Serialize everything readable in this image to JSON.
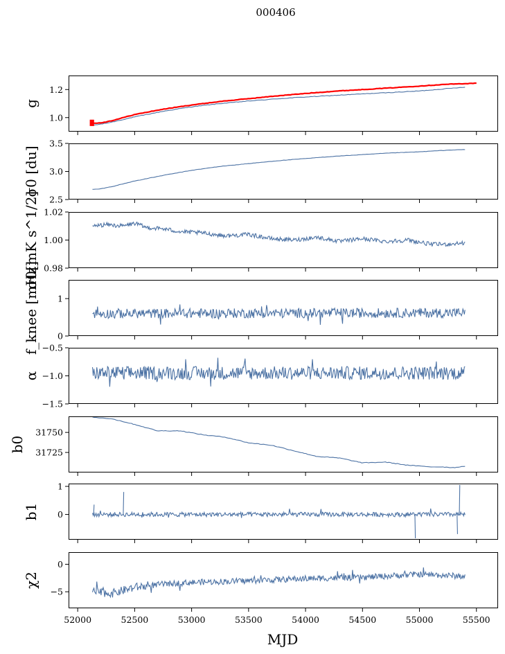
{
  "figure": {
    "title": "000406",
    "xlabel": "MJD"
  },
  "chart_data": [
    {
      "type": "line",
      "ylabel": "g",
      "ylim": [
        0.9,
        1.3
      ],
      "yticks": [
        1.0,
        1.2
      ],
      "ytick_labels": [
        "1.0",
        "1.2"
      ],
      "series": [
        {
          "color": "#4c72a4",
          "x": [
            52130,
            52200,
            52300,
            52500,
            52750,
            53000,
            53250,
            53500,
            53750,
            54000,
            54250,
            54500,
            54750,
            55000,
            55250,
            55400
          ],
          "values": [
            0.945,
            0.953,
            0.968,
            1.005,
            1.045,
            1.077,
            1.1,
            1.118,
            1.134,
            1.147,
            1.158,
            1.169,
            1.179,
            1.19,
            1.207,
            1.218
          ]
        },
        {
          "color": "#ff0000",
          "x": [
            52110,
            52130,
            52200,
            52300,
            52500,
            52750,
            53000,
            53250,
            53500,
            53750,
            54000,
            54250,
            54500,
            54750,
            55000,
            55250,
            55500
          ],
          "values": [
            0.955,
            0.96,
            0.962,
            0.978,
            1.022,
            1.06,
            1.09,
            1.115,
            1.135,
            1.155,
            1.172,
            1.188,
            1.2,
            1.212,
            1.225,
            1.238,
            1.245
          ]
        }
      ]
    },
    {
      "type": "line",
      "ylabel": "σ0 [du]",
      "ylim": [
        2.5,
        3.5
      ],
      "yticks": [
        2.5,
        3.0,
        3.5
      ],
      "ytick_labels": [
        "2.5",
        "3.0",
        "3.5"
      ],
      "series": [
        {
          "color": "#4c72a4",
          "x": [
            52130,
            52200,
            52300,
            52500,
            52750,
            53000,
            53250,
            53500,
            53750,
            54000,
            54250,
            54500,
            54750,
            55000,
            55250,
            55400
          ],
          "values": [
            2.68,
            2.69,
            2.73,
            2.83,
            2.93,
            3.02,
            3.09,
            3.14,
            3.19,
            3.23,
            3.27,
            3.3,
            3.33,
            3.35,
            3.38,
            3.39
          ]
        }
      ]
    },
    {
      "type": "line",
      "ylabel": "σ0[mK s^1/2]",
      "ylim": [
        0.98,
        1.02
      ],
      "yticks": [
        0.98,
        1.0,
        1.02
      ],
      "ytick_labels": [
        "0.98",
        "1.00",
        "1.02"
      ],
      "series": [
        {
          "color": "#4c72a4",
          "x": [
            52130,
            52250,
            52400,
            52500,
            52600,
            52750,
            52900,
            53100,
            53300,
            53500,
            53700,
            53900,
            54100,
            54300,
            54500,
            54700,
            54900,
            55100,
            55250,
            55400
          ],
          "values": [
            1.01,
            1.011,
            1.01,
            1.012,
            1.009,
            1.008,
            1.006,
            1.005,
            1.003,
            1.004,
            1.001,
            1.0,
            1.002,
            0.999,
            1.001,
            0.999,
            1.0,
            0.997,
            0.997,
            0.998
          ]
        }
      ]
    },
    {
      "type": "line",
      "ylabel": "f_knee [mHz]",
      "ylim": [
        0,
        1.5
      ],
      "yticks": [
        0,
        1
      ],
      "ytick_labels": [
        "0",
        "1"
      ],
      "series": [
        {
          "color": "#4c72a4",
          "x": [
            52130,
            55400
          ],
          "values": [
            0.6,
            0.62
          ]
        }
      ]
    },
    {
      "type": "line",
      "ylabel": "α",
      "ylim": [
        -1.5,
        -0.5
      ],
      "yticks": [
        -1.5,
        -1.0,
        -0.5
      ],
      "ytick_labels": [
        "−1.5",
        "−1.0",
        "−0.5"
      ],
      "series": [
        {
          "color": "#4c72a4",
          "x": [
            52130,
            55400
          ],
          "values": [
            -0.95,
            -0.95
          ]
        }
      ]
    },
    {
      "type": "line",
      "ylabel": "b0",
      "ylim": [
        31700,
        31770
      ],
      "yticks": [
        31725,
        31750
      ],
      "ytick_labels": [
        "31725",
        "31750"
      ],
      "series": [
        {
          "color": "#4c72a4",
          "x": [
            52130,
            52300,
            52500,
            52700,
            52900,
            53100,
            53300,
            53500,
            53700,
            53900,
            54100,
            54300,
            54500,
            54700,
            54900,
            55100,
            55200,
            55300,
            55400
          ],
          "values": [
            31769,
            31767,
            31760,
            31752,
            31752,
            31747,
            31744,
            31737,
            31734,
            31727,
            31720,
            31718,
            31712,
            31713,
            31709,
            31707,
            31707,
            31706,
            31708
          ]
        }
      ]
    },
    {
      "type": "line",
      "ylabel": "b1",
      "ylim": [
        -0.9,
        1.1
      ],
      "yticks": [
        0,
        1
      ],
      "ytick_labels": [
        "0",
        "1"
      ],
      "series": [
        {
          "color": "#4c72a4",
          "x": [
            52130,
            55400
          ],
          "values": [
            0.0,
            0.0
          ]
        }
      ]
    },
    {
      "type": "line",
      "ylabel": "χ2",
      "ylim": [
        -8,
        2.2
      ],
      "yticks": [
        -5,
        0
      ],
      "ytick_labels": [
        "−5",
        "0"
      ],
      "xticks": [
        52000,
        52500,
        53000,
        53500,
        54000,
        54500,
        55000,
        55500
      ],
      "xtick_labels": [
        "52000",
        "52500",
        "53000",
        "53500",
        "54000",
        "54500",
        "55000",
        "55500"
      ],
      "series": [
        {
          "color": "#4c72a4",
          "x": [
            52130,
            52300,
            52500,
            52750,
            53000,
            53500,
            54000,
            54500,
            55000,
            55400
          ],
          "values": [
            -5.0,
            -5.3,
            -4.2,
            -3.6,
            -3.3,
            -3.0,
            -2.6,
            -2.4,
            -1.8,
            -2.2
          ]
        }
      ]
    }
  ]
}
